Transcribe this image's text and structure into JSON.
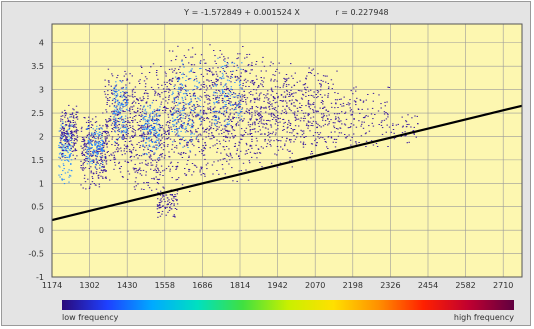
{
  "chart_data": {
    "type": "scatter",
    "title": "",
    "equation": "Y = -1.572849 + 0.001524 X",
    "r_text": "r = 0.227948",
    "regression": {
      "intercept": -1.572849,
      "slope": 0.001524,
      "r": 0.227948
    },
    "xlim": [
      1174,
      2774
    ],
    "ylim": [
      -1,
      4.4
    ],
    "x_ticks": [
      1174,
      1302,
      1430,
      1558,
      1686,
      1814,
      1942,
      2070,
      2198,
      2326,
      2454,
      2582,
      2710
    ],
    "x_tick_labels": [
      "1174",
      "1302",
      "1430",
      "1558",
      "1686",
      "1814",
      "1942",
      "2070",
      "2198",
      "2326",
      "2454",
      "2582",
      "2710"
    ],
    "y_ticks": [
      -1,
      -0.5,
      0,
      0.5,
      1,
      1.5,
      2,
      2.5,
      3,
      3.5,
      4
    ],
    "y_tick_labels": [
      "-1",
      "-0.5",
      "0",
      "0.5",
      "1",
      "1.5",
      "2",
      "2.5",
      "3",
      "3.5",
      "4"
    ],
    "grid": true,
    "density_legend": {
      "low_label": "low frequency",
      "high_label": "high frequency",
      "colors": [
        "#2a0a7a",
        "#1e40ff",
        "#00aaff",
        "#00e0c0",
        "#40e040",
        "#c8f000",
        "#ffe000",
        "#ff9000",
        "#ff2000",
        "#c00030",
        "#600040"
      ]
    },
    "colors": {
      "plot_background": "#fdf7b0",
      "frame_background": "#e4e4e4",
      "grid": "#9a9a9a",
      "regression_line": "#000000",
      "scatter_low": "#3a1aa0",
      "scatter_mid": "#2a8cff"
    },
    "scatter_clusters": [
      {
        "x": [
          1195,
          1240
        ],
        "y": [
          0.9,
          2.6
        ],
        "n": 140,
        "color": "#2a8cff"
      },
      {
        "x": [
          1200,
          1260
        ],
        "y": [
          1.5,
          2.7
        ],
        "n": 180,
        "color": "#3a1aa0"
      },
      {
        "x": [
          1270,
          1360
        ],
        "y": [
          0.8,
          2.6
        ],
        "n": 260,
        "color": "#3a1aa0"
      },
      {
        "x": [
          1290,
          1350
        ],
        "y": [
          1.3,
          2.3
        ],
        "n": 120,
        "color": "#2a8cff"
      },
      {
        "x": [
          1350,
          1450
        ],
        "y": [
          1.0,
          3.5
        ],
        "n": 320,
        "color": "#3a1aa0"
      },
      {
        "x": [
          1380,
          1430
        ],
        "y": [
          1.8,
          3.3
        ],
        "n": 120,
        "color": "#2a8cff"
      },
      {
        "x": [
          1450,
          1560
        ],
        "y": [
          0.6,
          3.7
        ],
        "n": 360,
        "color": "#3a1aa0"
      },
      {
        "x": [
          1480,
          1540
        ],
        "y": [
          1.5,
          2.8
        ],
        "n": 140,
        "color": "#2a8cff"
      },
      {
        "x": [
          1530,
          1600
        ],
        "y": [
          0.2,
          1.0
        ],
        "n": 90,
        "color": "#3a1aa0"
      },
      {
        "x": [
          1560,
          1700
        ],
        "y": [
          0.8,
          4.0
        ],
        "n": 420,
        "color": "#3a1aa0"
      },
      {
        "x": [
          1580,
          1680
        ],
        "y": [
          1.6,
          3.8
        ],
        "n": 160,
        "color": "#2a8cff"
      },
      {
        "x": [
          1700,
          1850
        ],
        "y": [
          1.0,
          4.0
        ],
        "n": 460,
        "color": "#3a1aa0"
      },
      {
        "x": [
          1720,
          1820
        ],
        "y": [
          2.0,
          3.8
        ],
        "n": 120,
        "color": "#2a8cff"
      },
      {
        "x": [
          1850,
          2000
        ],
        "y": [
          1.2,
          3.8
        ],
        "n": 380,
        "color": "#3a1aa0"
      },
      {
        "x": [
          2000,
          2150
        ],
        "y": [
          1.4,
          3.6
        ],
        "n": 260,
        "color": "#3a1aa0"
      },
      {
        "x": [
          2150,
          2320
        ],
        "y": [
          1.6,
          3.2
        ],
        "n": 130,
        "color": "#3a1aa0"
      },
      {
        "x": [
          2320,
          2420
        ],
        "y": [
          1.8,
          2.6
        ],
        "n": 40,
        "color": "#3a1aa0"
      }
    ]
  }
}
